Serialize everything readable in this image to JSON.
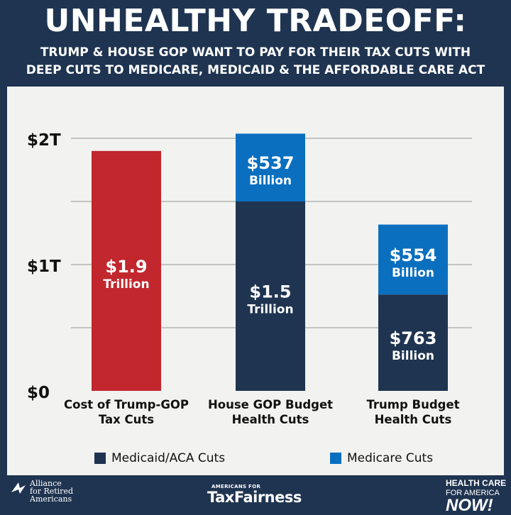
{
  "header": {
    "title": "UNHEALTHY TRADEOFF:",
    "subtitle_line1": "TRUMP & HOUSE GOP WANT TO PAY FOR THEIR TAX CUTS WITH",
    "subtitle_line2": "DEEP CUTS TO MEDICARE, MEDICAID & THE AFFORDABLE CARE ACT"
  },
  "colors": {
    "tax_cuts": "#c1272d",
    "medicaid_aca": "#1f3450",
    "medicare": "#0a6fbf",
    "gridline": "#b5b5b5"
  },
  "chart_data": {
    "type": "bar",
    "stacked": true,
    "unit": "trillion USD",
    "ylim": [
      0,
      2.1
    ],
    "y_ticks": [
      {
        "value": 0,
        "label": "$0"
      },
      {
        "value": 1,
        "label": "$1T"
      },
      {
        "value": 2,
        "label": "$2T"
      }
    ],
    "gridlines": [
      0.5,
      1.0,
      1.5,
      2.0
    ],
    "categories": [
      [
        "Cost of Trump-GOP",
        "Tax Cuts"
      ],
      [
        "House GOP Budget",
        "Health Cuts"
      ],
      [
        "Trump Budget",
        "Health Cuts"
      ]
    ],
    "bars": [
      {
        "segments": [
          {
            "series": "tax",
            "value": 1.9,
            "label_amount": "$1.9",
            "label_unit": "Trillion"
          }
        ]
      },
      {
        "segments": [
          {
            "series": "medicaid",
            "value": 1.5,
            "label_amount": "$1.5",
            "label_unit": "Trillion"
          },
          {
            "series": "medicare",
            "value": 0.537,
            "label_amount": "$537",
            "label_unit": "Billion"
          }
        ]
      },
      {
        "segments": [
          {
            "series": "medicaid",
            "value": 0.763,
            "label_amount": "$763",
            "label_unit": "Billion"
          },
          {
            "series": "medicare",
            "value": 0.554,
            "label_amount": "$554",
            "label_unit": "Billion"
          }
        ]
      }
    ],
    "legend": [
      {
        "series": "medicaid",
        "name": "Medicaid/ACA Cuts"
      },
      {
        "series": "medicare",
        "name": "Medicare Cuts"
      }
    ]
  },
  "footer": {
    "alliance": [
      "Alliance",
      "for Retired",
      "Americans"
    ],
    "atf_small": "AMERICANS FOR",
    "atf_big": "TaxFairness",
    "hcan": [
      "HEALTH CARE",
      "FOR AMERICA",
      "NOW!"
    ]
  }
}
